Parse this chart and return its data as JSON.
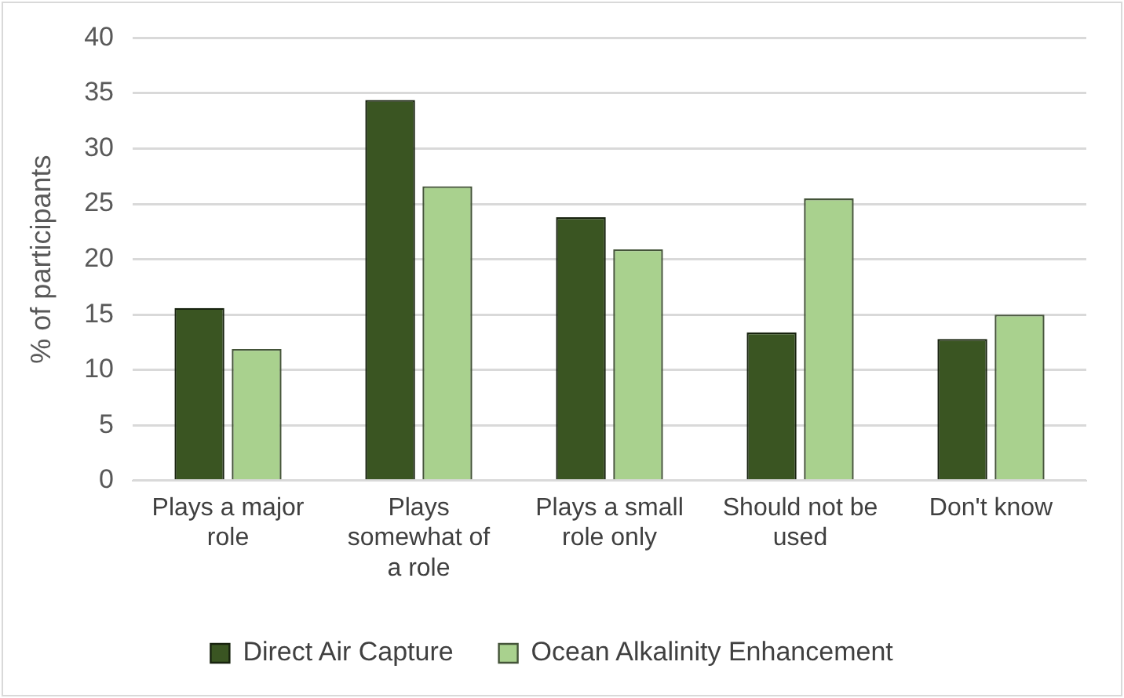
{
  "chart_data": {
    "type": "bar",
    "ylabel": "% of participants",
    "categories": [
      "Plays a major role",
      "Plays somewhat of a role",
      "Plays a small role only",
      "Should not be used",
      "Don't know"
    ],
    "series": [
      {
        "name": "Direct Air Capture",
        "color": "#3a5522",
        "values": [
          15.6,
          34.4,
          23.8,
          13.4,
          12.8
        ]
      },
      {
        "name": "Ocean Alkalinity Enhancement",
        "color": "#a9d18e",
        "values": [
          11.9,
          26.6,
          20.9,
          25.5,
          15.0
        ]
      }
    ],
    "ylim": [
      0,
      40
    ],
    "yticks": [
      0,
      5,
      10,
      15,
      20,
      25,
      30,
      35,
      40
    ],
    "grid": "y",
    "legend": "bottom"
  }
}
